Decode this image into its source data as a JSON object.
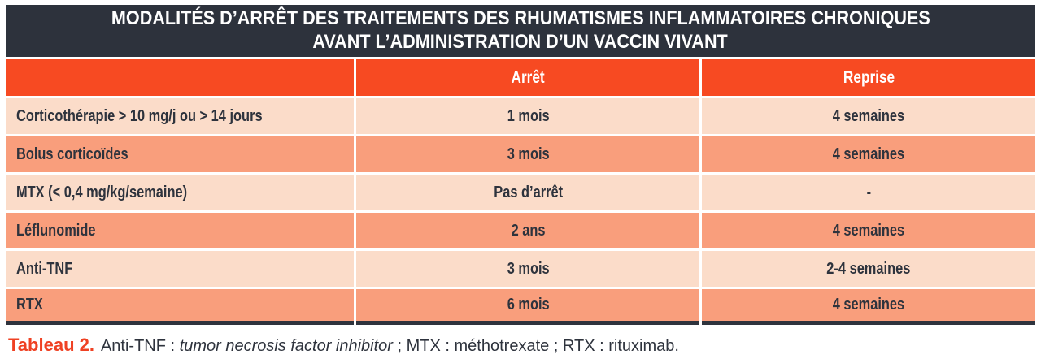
{
  "colors": {
    "title_bg": "#2D323C",
    "header_bg": "#F74A22",
    "row_light": "#FBDCC9",
    "row_dark": "#F99E7C",
    "text_dark": "#2E333D",
    "accent": "#EF4123"
  },
  "table": {
    "title_line1": "MODALITÉS D’ARRÊT DES TRAITEMENTS DES RHUMATISMES INFLAMMATOIRES CHRONIQUES",
    "title_line2": "AVANT L’ADMINISTRATION D’UN VACCIN VIVANT",
    "columns": [
      "",
      "Arrêt",
      "Reprise"
    ],
    "rows": [
      {
        "treatment": "Corticothérapie > 10 mg/j ou > 14 jours",
        "arret": "1 mois",
        "reprise": "4 semaines"
      },
      {
        "treatment": "Bolus corticoïdes",
        "arret": "3 mois",
        "reprise": "4 semaines"
      },
      {
        "treatment": "MTX (< 0,4 mg/kg/semaine)",
        "arret": "Pas d’arrêt",
        "reprise": "-"
      },
      {
        "treatment": "Léflunomide",
        "arret": "2 ans",
        "reprise": "4 semaines"
      },
      {
        "treatment": "Anti-TNF",
        "arret": "3 mois",
        "reprise": "2-4 semaines"
      },
      {
        "treatment": "RTX",
        "arret": "6 mois",
        "reprise": "4 semaines"
      }
    ]
  },
  "caption": {
    "label": "Tableau 2.",
    "pre": "Anti-TNF : ",
    "italic": "tumor necrosis factor inhibitor",
    "post": " ; MTX : méthotrexate ; RTX : rituximab."
  }
}
